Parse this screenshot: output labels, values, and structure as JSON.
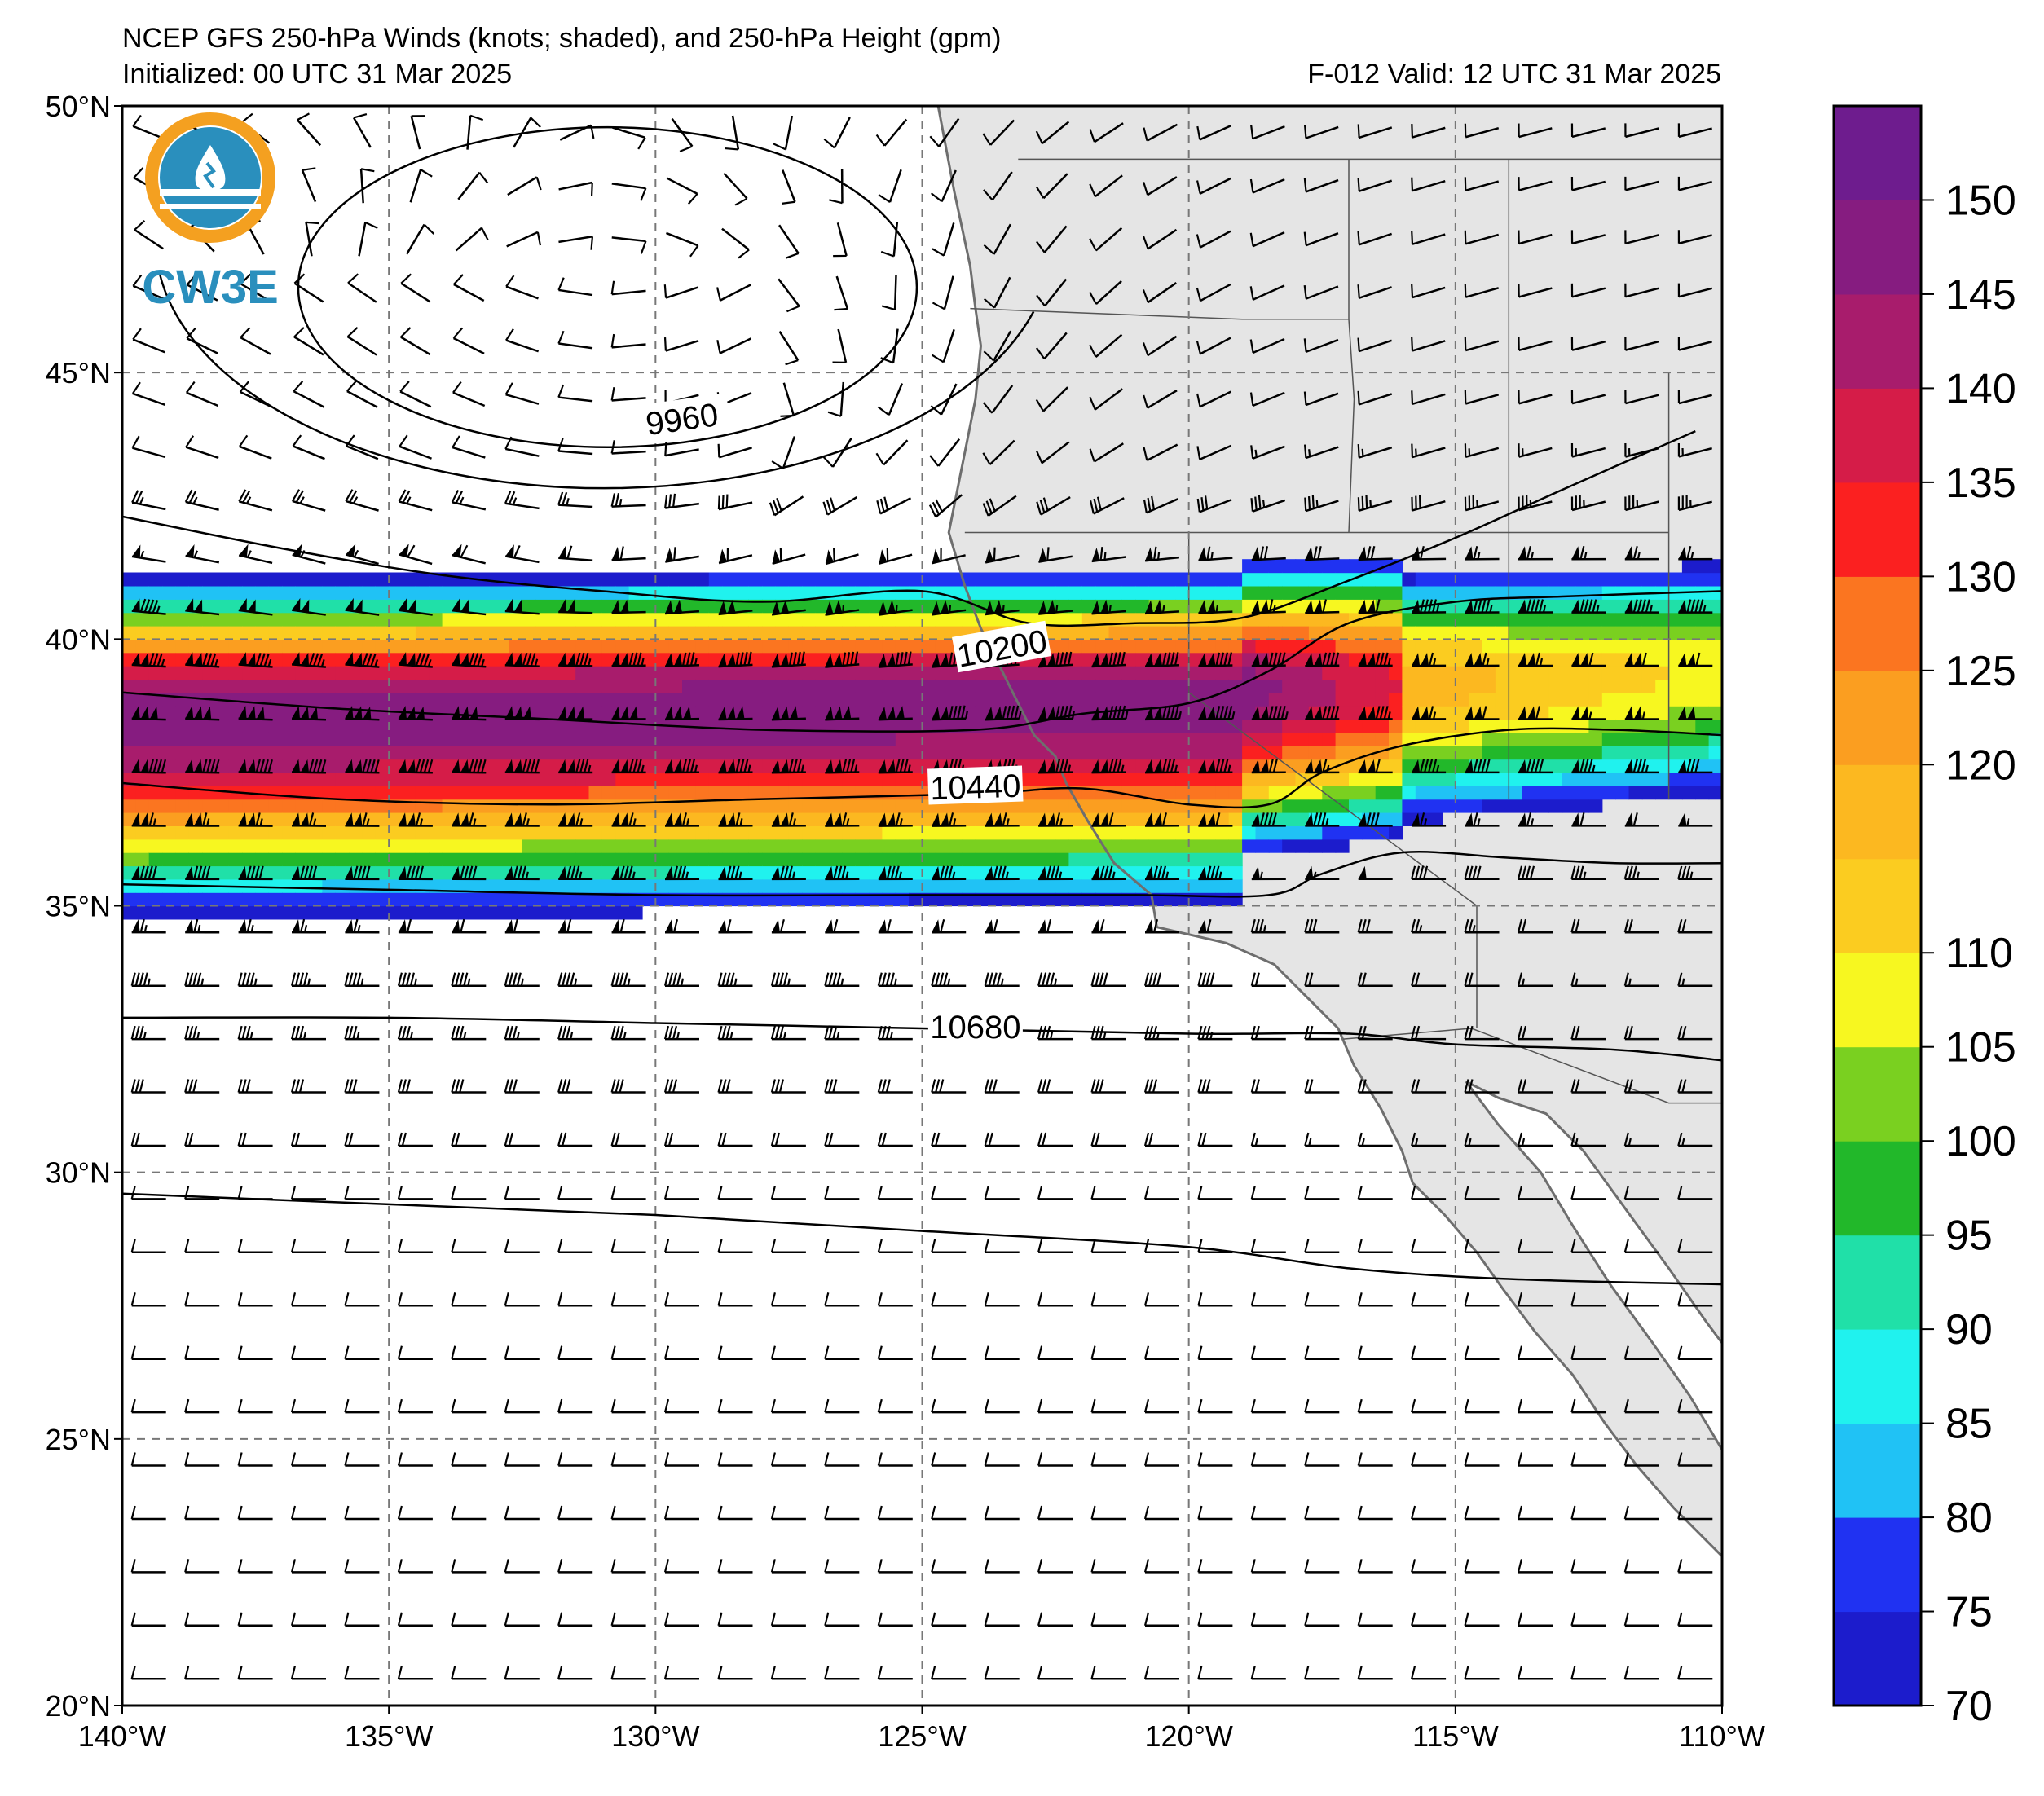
{
  "header": {
    "title": "NCEP GFS 250-hPa Winds (knots; shaded), and 250-hPa Height (gpm)",
    "initialized": "Initialized: 00 UTC 31 Mar 2025",
    "valid": "F-012  Valid: 12 UTC 31 Mar 2025"
  },
  "logo": {
    "text": "CW3E"
  },
  "map": {
    "extent": {
      "lon_min": -140,
      "lon_max": -110,
      "lat_min": 20,
      "lat_max": 50
    },
    "lon_ticks": [
      {
        "value": -140,
        "label": "140°W"
      },
      {
        "value": -135,
        "label": "135°W"
      },
      {
        "value": -130,
        "label": "130°W"
      },
      {
        "value": -125,
        "label": "125°W"
      },
      {
        "value": -120,
        "label": "120°W"
      },
      {
        "value": -115,
        "label": "115°W"
      },
      {
        "value": -110,
        "label": "110°W"
      }
    ],
    "lat_ticks": [
      {
        "value": 50,
        "label": "50°N"
      },
      {
        "value": 45,
        "label": "45°N"
      },
      {
        "value": 40,
        "label": "40°N"
      },
      {
        "value": 35,
        "label": "35°N"
      },
      {
        "value": 30,
        "label": "30°N"
      },
      {
        "value": 25,
        "label": "25°N"
      },
      {
        "value": 20,
        "label": "20°N"
      }
    ],
    "gridlines": true,
    "land_color": "#e5e5e5",
    "coast_color": "#6e6e6e"
  },
  "colorbar": {
    "labels": [
      "150",
      "145",
      "140",
      "135",
      "130",
      "125",
      "120",
      "110",
      "105",
      "100",
      "95",
      "90",
      "85",
      "80",
      "75",
      "70"
    ],
    "bins": [
      {
        "low": 70,
        "high": 75,
        "color": "#1c1ccc"
      },
      {
        "low": 75,
        "high": 80,
        "color": "#2032f2"
      },
      {
        "low": 80,
        "high": 85,
        "color": "#20c2f5"
      },
      {
        "low": 85,
        "high": 90,
        "color": "#20f2ee"
      },
      {
        "low": 90,
        "high": 95,
        "color": "#20e0a8"
      },
      {
        "low": 95,
        "high": 100,
        "color": "#22b82a"
      },
      {
        "low": 100,
        "high": 105,
        "color": "#7ad020"
      },
      {
        "low": 105,
        "high": 110,
        "color": "#f7f720"
      },
      {
        "low": 110,
        "high": 115,
        "color": "#fbcc20"
      },
      {
        "low": 115,
        "high": 120,
        "color": "#fcb820"
      },
      {
        "low": 120,
        "high": 125,
        "color": "#fb9e20"
      },
      {
        "low": 125,
        "high": 130,
        "color": "#fb7520"
      },
      {
        "low": 130,
        "high": 135,
        "color": "#fb2020"
      },
      {
        "low": 135,
        "high": 140,
        "color": "#d51c48"
      },
      {
        "low": 140,
        "high": 145,
        "color": "#a81c6c"
      },
      {
        "low": 145,
        "high": 150,
        "color": "#861c80"
      },
      {
        "low": 150,
        "high": 155,
        "color": "#6e1c8e"
      }
    ]
  },
  "contours": [
    {
      "value": 9960,
      "label": "9960",
      "label_lon": -129.5,
      "label_lat": 44.1,
      "label_rotate": -8,
      "closed": true,
      "center_lon": -130.9,
      "center_lat": 46.6,
      "rx_deg": 5.8,
      "ry_deg": 3.0,
      "points": []
    },
    {
      "value": 10200,
      "label": "10200",
      "label_lon": -123.5,
      "label_lat": 39.8,
      "label_rotate": -10,
      "closed": false,
      "points": [
        [
          -140,
          42.3
        ],
        [
          -137,
          41.7
        ],
        [
          -134,
          41.2
        ],
        [
          -131,
          40.9
        ],
        [
          -128,
          40.7
        ],
        [
          -125,
          40.9
        ],
        [
          -123,
          40.3
        ],
        [
          -121,
          40.3
        ],
        [
          -119,
          40.4
        ],
        [
          -117,
          41.1
        ],
        [
          -115,
          41.9
        ],
        [
          -113,
          42.8
        ],
        [
          -110.5,
          43.9
        ]
      ]
    },
    {
      "value": 10200,
      "label": "",
      "closed": false,
      "points": [
        [
          -140,
          39.0
        ],
        [
          -136,
          38.7
        ],
        [
          -132,
          38.5
        ],
        [
          -128,
          38.3
        ],
        [
          -124,
          38.3
        ],
        [
          -122,
          38.6
        ],
        [
          -120,
          38.8
        ],
        [
          -118.5,
          39.4
        ],
        [
          -117,
          40.3
        ],
        [
          -115,
          40.7
        ],
        [
          -113,
          40.8
        ],
        [
          -110,
          40.9
        ]
      ]
    },
    {
      "value": 10440,
      "label": "10440",
      "label_lon": -124.0,
      "label_lat": 37.2,
      "label_rotate": -2,
      "closed": false,
      "points": [
        [
          -140,
          37.3
        ],
        [
          -136,
          37.0
        ],
        [
          -132,
          36.9
        ],
        [
          -128,
          37.0
        ],
        [
          -124,
          37.1
        ],
        [
          -122,
          37.2
        ],
        [
          -120,
          36.9
        ],
        [
          -118.5,
          36.9
        ],
        [
          -117.5,
          37.5
        ],
        [
          -116,
          38.0
        ],
        [
          -114,
          38.3
        ],
        [
          -112,
          38.3
        ],
        [
          -110,
          38.2
        ]
      ]
    },
    {
      "value": 10440,
      "label": "",
      "closed": false,
      "points": [
        [
          -140,
          35.4
        ],
        [
          -135,
          35.3
        ],
        [
          -130,
          35.2
        ],
        [
          -125,
          35.2
        ],
        [
          -121,
          35.2
        ],
        [
          -118.5,
          35.2
        ],
        [
          -117.5,
          35.6
        ],
        [
          -116,
          36.0
        ],
        [
          -114,
          35.9
        ],
        [
          -112,
          35.8
        ],
        [
          -110,
          35.8
        ]
      ]
    },
    {
      "value": 10680,
      "label": "10680",
      "label_lon": -124.0,
      "label_lat": 32.7,
      "label_rotate": 0,
      "closed": false,
      "points": [
        [
          -140,
          32.9
        ],
        [
          -135,
          32.9
        ],
        [
          -130,
          32.8
        ],
        [
          -125,
          32.7
        ],
        [
          -120,
          32.6
        ],
        [
          -117,
          32.6
        ],
        [
          -115,
          32.4
        ],
        [
          -112,
          32.3
        ],
        [
          -110,
          32.1
        ]
      ]
    },
    {
      "value": 10680,
      "label": "",
      "closed": false,
      "points": [
        [
          -140,
          29.6
        ],
        [
          -135,
          29.4
        ],
        [
          -130,
          29.2
        ],
        [
          -125,
          28.9
        ],
        [
          -120,
          28.6
        ],
        [
          -117,
          28.2
        ],
        [
          -114,
          28.0
        ],
        [
          -110,
          27.9
        ]
      ]
    }
  ]
}
